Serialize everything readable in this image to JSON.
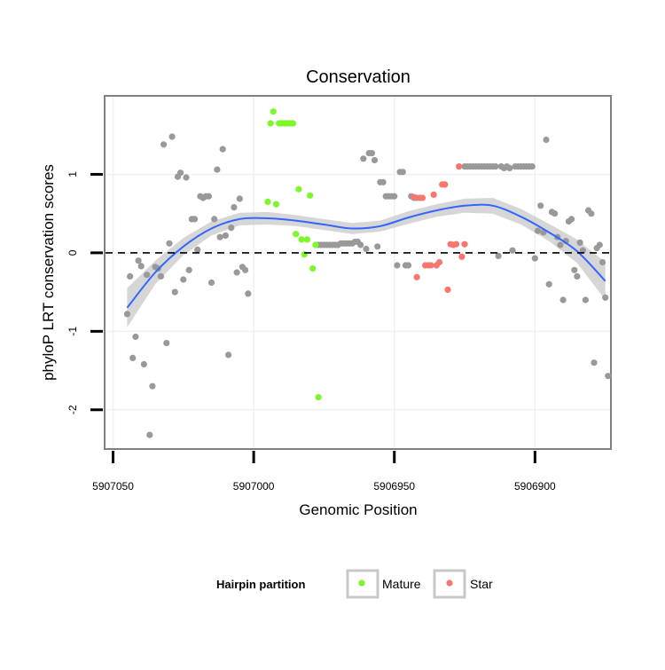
{
  "chart_data": {
    "type": "scatter",
    "title": "Conservation",
    "xlabel": "Genomic Position",
    "ylabel": "phyloP LRT conservation scores",
    "xlim": [
      5907053,
      5906873
    ],
    "ylim": [
      -2.5,
      2.0
    ],
    "x_reversed": true,
    "x_ticks": [
      5907050,
      5907000,
      5906950,
      5906900
    ],
    "x_tick_labels": [
      "5907050",
      "5907000",
      "5906950",
      "5906900"
    ],
    "y_ticks": [
      -2,
      -1,
      0,
      1
    ],
    "y_tick_labels": [
      "-2",
      "-1",
      "0",
      "1"
    ],
    "reference_line": {
      "y": 0,
      "style": "dashed",
      "color": "#000000"
    },
    "colors": {
      "Other": "#999999",
      "Mature": "#7cf72a",
      "Star": "#f8766d",
      "smooth": "#3366ff",
      "band": "#c8c8c8",
      "panel_border": "#808080",
      "grid": "#f0f0f0"
    },
    "legend": {
      "title": "Hairpin partition",
      "position": "bottom",
      "entries": [
        "Mature",
        "Star"
      ]
    },
    "smooth": {
      "x": [
        5907045,
        5907035,
        5907025,
        5907015,
        5907005,
        5906995,
        5906985,
        5906975,
        5906965,
        5906955,
        5906945,
        5906935,
        5906925,
        5906915,
        5906905,
        5906895,
        5906885,
        5906875
      ],
      "y": [
        -0.7,
        -0.25,
        0.08,
        0.31,
        0.43,
        0.44,
        0.41,
        0.36,
        0.31,
        0.34,
        0.45,
        0.54,
        0.6,
        0.6,
        0.46,
        0.26,
        0.02,
        -0.36
      ],
      "lower": [
        -0.95,
        -0.4,
        -0.03,
        0.22,
        0.35,
        0.36,
        0.34,
        0.29,
        0.24,
        0.27,
        0.37,
        0.46,
        0.51,
        0.5,
        0.36,
        0.15,
        -0.13,
        -0.6
      ],
      "upper": [
        -0.45,
        -0.1,
        0.19,
        0.4,
        0.51,
        0.52,
        0.48,
        0.43,
        0.38,
        0.41,
        0.53,
        0.62,
        0.69,
        0.7,
        0.56,
        0.37,
        0.17,
        -0.12
      ]
    },
    "series": [
      {
        "name": "Other",
        "points": [
          [
            5907045,
            -0.78
          ],
          [
            5907044,
            -0.3
          ],
          [
            5907043,
            -1.34
          ],
          [
            5907042,
            -1.07
          ],
          [
            5907041,
            -0.1
          ],
          [
            5907040,
            -0.17
          ],
          [
            5907039,
            -1.42
          ],
          [
            5907038,
            -0.28
          ],
          [
            5907037,
            -2.32
          ],
          [
            5907036,
            -1.7
          ],
          [
            5907035,
            -0.18
          ],
          [
            5907034,
            -0.2
          ],
          [
            5907033,
            -0.3
          ],
          [
            5907032,
            1.38
          ],
          [
            5907031,
            -1.15
          ],
          [
            5907030,
            0.12
          ],
          [
            5907029,
            1.48
          ],
          [
            5907028,
            -0.5
          ],
          [
            5907027,
            0.97
          ],
          [
            5907026,
            1.02
          ],
          [
            5907025,
            -0.34
          ],
          [
            5907024,
            0.96
          ],
          [
            5907023,
            -0.22
          ],
          [
            5907022,
            0.43
          ],
          [
            5907021,
            0.43
          ],
          [
            5907020,
            0.04
          ],
          [
            5907019,
            0.72
          ],
          [
            5907018,
            0.7
          ],
          [
            5907017,
            0.72
          ],
          [
            5907016,
            0.72
          ],
          [
            5907015,
            -0.38
          ],
          [
            5907014,
            0.43
          ],
          [
            5907013,
            1.06
          ],
          [
            5907012,
            0.2
          ],
          [
            5907011,
            1.32
          ],
          [
            5907010,
            0.22
          ],
          [
            5907009,
            -1.3
          ],
          [
            5907008,
            0.32
          ],
          [
            5907007,
            0.58
          ],
          [
            5907006,
            -0.25
          ],
          [
            5907005,
            0.69
          ],
          [
            5907004,
            -0.18
          ],
          [
            5907003,
            -0.22
          ],
          [
            5907002,
            -0.52
          ],
          [
            5906977,
            0.1
          ],
          [
            5906976,
            0.1
          ],
          [
            5906975,
            0.1
          ],
          [
            5906974,
            0.1
          ],
          [
            5906973,
            0.1
          ],
          [
            5906972,
            0.1
          ],
          [
            5906971,
            0.1
          ],
          [
            5906970,
            0.1
          ],
          [
            5906969,
            0.12
          ],
          [
            5906968,
            0.12
          ],
          [
            5906967,
            0.12
          ],
          [
            5906966,
            0.12
          ],
          [
            5906965,
            0.12
          ],
          [
            5906964,
            0.14
          ],
          [
            5906963,
            0.14
          ],
          [
            5906962,
            0.1
          ],
          [
            5906961,
            1.2
          ],
          [
            5906960,
            0.05
          ],
          [
            5906959,
            1.27
          ],
          [
            5906958,
            1.27
          ],
          [
            5906957,
            1.18
          ],
          [
            5906956,
            0.08
          ],
          [
            5906955,
            0.9
          ],
          [
            5906954,
            0.9
          ],
          [
            5906953,
            0.72
          ],
          [
            5906952,
            0.72
          ],
          [
            5906951,
            0.72
          ],
          [
            5906950,
            0.72
          ],
          [
            5906949,
            -0.16
          ],
          [
            5906948,
            1.03
          ],
          [
            5906947,
            1.03
          ],
          [
            5906946,
            -0.16
          ],
          [
            5906945,
            -0.16
          ],
          [
            5906944,
            0.72
          ],
          [
            5906943,
            0.7
          ],
          [
            5906942,
            0.7
          ],
          [
            5906925,
            1.1
          ],
          [
            5906924,
            1.1
          ],
          [
            5906923,
            1.1
          ],
          [
            5906922,
            1.1
          ],
          [
            5906921,
            1.1
          ],
          [
            5906920,
            1.1
          ],
          [
            5906919,
            1.1
          ],
          [
            5906918,
            1.1
          ],
          [
            5906917,
            1.1
          ],
          [
            5906916,
            1.1
          ],
          [
            5906915,
            1.1
          ],
          [
            5906914,
            1.1
          ],
          [
            5906913,
            -0.04
          ],
          [
            5906912,
            1.1
          ],
          [
            5906911,
            1.08
          ],
          [
            5906910,
            1.1
          ],
          [
            5906909,
            1.08
          ],
          [
            5906908,
            0.03
          ],
          [
            5906907,
            1.1
          ],
          [
            5906906,
            1.1
          ],
          [
            5906905,
            1.1
          ],
          [
            5906904,
            1.1
          ],
          [
            5906903,
            1.1
          ],
          [
            5906902,
            1.1
          ],
          [
            5906901,
            1.1
          ],
          [
            5906900,
            -0.07
          ],
          [
            5906899,
            0.28
          ],
          [
            5906898,
            0.6
          ],
          [
            5906897,
            0.26
          ],
          [
            5906896,
            1.44
          ],
          [
            5906895,
            -0.4
          ],
          [
            5906894,
            0.52
          ],
          [
            5906893,
            0.5
          ],
          [
            5906892,
            0.2
          ],
          [
            5906891,
            0.1
          ],
          [
            5906890,
            -0.6
          ],
          [
            5906889,
            0.15
          ],
          [
            5906888,
            0.4
          ],
          [
            5906887,
            0.43
          ],
          [
            5906886,
            -0.22
          ],
          [
            5906885,
            -0.3
          ],
          [
            5906884,
            0.13
          ],
          [
            5906883,
            0.03
          ],
          [
            5906882,
            -0.6
          ],
          [
            5906881,
            0.54
          ],
          [
            5906880,
            0.5
          ],
          [
            5906879,
            -1.4
          ],
          [
            5906878,
            0.06
          ],
          [
            5906877,
            0.1
          ],
          [
            5906876,
            -0.12
          ],
          [
            5906875,
            -0.57
          ],
          [
            5906874,
            -1.57
          ]
        ]
      },
      {
        "name": "Mature",
        "points": [
          [
            5906995,
            0.65
          ],
          [
            5906994,
            1.65
          ],
          [
            5906993,
            1.8
          ],
          [
            5906992,
            0.62
          ],
          [
            5906991,
            1.65
          ],
          [
            5906990,
            1.65
          ],
          [
            5906989,
            1.65
          ],
          [
            5906988,
            1.65
          ],
          [
            5906987,
            1.65
          ],
          [
            5906986,
            1.65
          ],
          [
            5906985,
            0.24
          ],
          [
            5906984,
            0.81
          ],
          [
            5906983,
            0.17
          ],
          [
            5906982,
            -0.02
          ],
          [
            5906981,
            0.17
          ],
          [
            5906980,
            0.73
          ],
          [
            5906979,
            -0.2
          ],
          [
            5906978,
            0.1
          ],
          [
            5906977,
            -1.84
          ]
        ]
      },
      {
        "name": "Star",
        "points": [
          [
            5906943,
            0.71
          ],
          [
            5906942,
            -0.31
          ],
          [
            5906941,
            0.7
          ],
          [
            5906940,
            0.7
          ],
          [
            5906939,
            -0.16
          ],
          [
            5906938,
            -0.16
          ],
          [
            5906937,
            -0.16
          ],
          [
            5906936,
            0.74
          ],
          [
            5906935,
            -0.16
          ],
          [
            5906934,
            -0.12
          ],
          [
            5906933,
            0.87
          ],
          [
            5906932,
            0.87
          ],
          [
            5906931,
            -0.47
          ],
          [
            5906930,
            0.11
          ],
          [
            5906929,
            0.1
          ],
          [
            5906928,
            0.11
          ],
          [
            5906927,
            1.1
          ],
          [
            5906926,
            -0.05
          ],
          [
            5906925,
            0.11
          ]
        ]
      }
    ]
  }
}
